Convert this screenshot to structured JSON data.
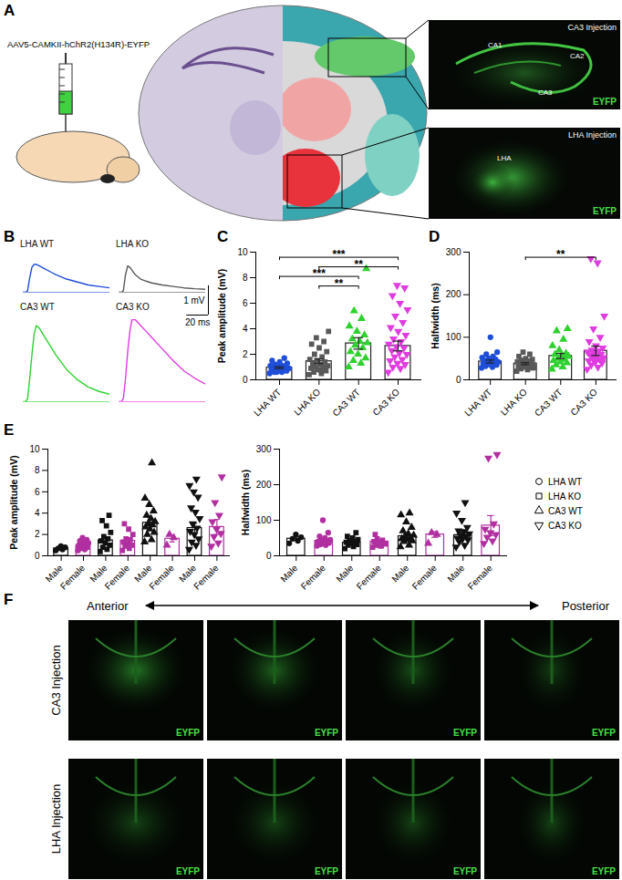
{
  "panels": {
    "A": {
      "label": "A",
      "vector": "AAV5-CAMKII-hChR2(H134R)-EYFP",
      "insets": [
        {
          "title": "CA3 Injection",
          "stain": "EYFP",
          "regions": [
            "CA1",
            "CA2",
            "CA3"
          ]
        },
        {
          "title": "LHA Injection",
          "stain": "EYFP",
          "regions": [
            "LHA"
          ]
        }
      ]
    },
    "F": {
      "label": "F",
      "axis": {
        "start": "Anterior",
        "end": "Posterior"
      },
      "rows": [
        {
          "title": "CA3 Injection",
          "images": [
            "EYFP",
            "EYFP",
            "EYFP",
            "EYFP"
          ]
        },
        {
          "title": "LHA Injection",
          "images": [
            "EYFP",
            "EYFP",
            "EYFP",
            "EYFP"
          ]
        }
      ]
    }
  },
  "chart_data": [
    {
      "panel": "B",
      "type": "line",
      "tick_labels": false,
      "x": [
        0,
        2,
        4,
        6,
        8,
        10,
        12,
        15,
        20,
        25,
        30,
        40,
        50,
        60,
        70,
        80
      ],
      "series": [
        {
          "name": "LHA WT",
          "color": "#1f4ed8",
          "values": [
            0,
            0,
            0.05,
            0.5,
            0.85,
            0.95,
            0.95,
            0.9,
            0.8,
            0.7,
            0.6,
            0.45,
            0.35,
            0.25,
            0.2,
            0.15
          ]
        },
        {
          "name": "LHA KO",
          "color": "#595959",
          "values": [
            0,
            0,
            0.05,
            0.6,
            0.9,
            0.85,
            0.75,
            0.6,
            0.45,
            0.38,
            0.32,
            0.25,
            0.2,
            0.15,
            0.12,
            0.1
          ]
        },
        {
          "name": "CA3 WT",
          "color": "#2fd12f",
          "values": [
            0,
            0,
            0.1,
            0.8,
            1.6,
            2.3,
            2.6,
            2.5,
            2.2,
            1.9,
            1.6,
            1.1,
            0.75,
            0.5,
            0.35,
            0.25
          ]
        },
        {
          "name": "CA3 KO",
          "color": "#e03ce0",
          "values": [
            0,
            0,
            0.1,
            0.8,
            1.7,
            2.4,
            2.8,
            2.8,
            2.6,
            2.4,
            2.2,
            1.8,
            1.4,
            1.05,
            0.8,
            0.6
          ]
        }
      ],
      "scale_bar": {
        "y": 1,
        "y_label": "1 mV",
        "x": 20,
        "x_label": "20 ms"
      }
    },
    {
      "panel": "C",
      "type": "bar",
      "y_label": "Peak amplitude (mV)",
      "ylim": [
        0,
        10
      ],
      "yticks": [
        0,
        2,
        4,
        6,
        8,
        10
      ],
      "series": [
        {
          "name": "LHA WT",
          "color": "#1f4ed8",
          "marker": "circle",
          "mean": 0.95,
          "sem": 0.07,
          "values": [
            0.5,
            0.6,
            0.6,
            0.7,
            0.7,
            0.8,
            0.8,
            0.8,
            0.9,
            0.9,
            1.0,
            1.0,
            1.0,
            1.1,
            1.1,
            1.2,
            1.3,
            1.4,
            1.5,
            1.7,
            0.6,
            0.9
          ]
        },
        {
          "name": "LHA KO",
          "color": "#595959",
          "marker": "square",
          "mean": 1.45,
          "sem": 0.18,
          "values": [
            0.4,
            0.5,
            0.6,
            0.7,
            0.8,
            0.9,
            1.0,
            1.0,
            1.1,
            1.2,
            1.3,
            1.4,
            1.5,
            1.6,
            1.8,
            2.0,
            2.2,
            2.5,
            2.8,
            3.0,
            3.3,
            3.8,
            0.7,
            1.2
          ]
        },
        {
          "name": "CA3 WT",
          "color": "#2fd12f",
          "marker": "triangle",
          "mean": 2.85,
          "sem": 0.45,
          "values": [
            1.0,
            1.3,
            1.5,
            1.7,
            2.0,
            2.2,
            2.5,
            2.7,
            2.9,
            3.0,
            3.2,
            3.5,
            3.8,
            4.2,
            4.8,
            5.4,
            8.7
          ]
        },
        {
          "name": "CA3 KO",
          "color": "#e03ce0",
          "marker": "triangle-down",
          "mean": 2.65,
          "sem": 0.38,
          "values": [
            0.6,
            0.9,
            1.0,
            1.2,
            1.3,
            1.5,
            1.6,
            1.8,
            2.0,
            2.1,
            2.3,
            2.5,
            2.6,
            2.8,
            3.0,
            3.2,
            3.5,
            3.8,
            4.1,
            4.5,
            5.0,
            5.5,
            6.0,
            6.6,
            7.2,
            7.4
          ]
        }
      ],
      "comparisons": [
        {
          "from": "LHA WT",
          "to": "CA3 KO",
          "label": "***"
        },
        {
          "from": "LHA KO",
          "to": "CA3 KO",
          "label": "**"
        },
        {
          "from": "LHA WT",
          "to": "CA3 WT",
          "label": "***"
        },
        {
          "from": "LHA KO",
          "to": "CA3 WT",
          "label": "**"
        }
      ]
    },
    {
      "panel": "D",
      "type": "bar",
      "y_label": "Halfwidth (ms)",
      "ylim": [
        0,
        300
      ],
      "yticks": [
        0,
        100,
        200,
        300
      ],
      "series": [
        {
          "name": "LHA WT",
          "color": "#1f4ed8",
          "marker": "circle",
          "mean": 43,
          "sem": 3.5,
          "values": [
            28,
            30,
            32,
            35,
            36,
            38,
            40,
            40,
            42,
            44,
            45,
            48,
            50,
            52,
            55,
            60,
            65,
            100,
            38,
            42
          ]
        },
        {
          "name": "LHA KO",
          "color": "#595959",
          "marker": "square",
          "mean": 38,
          "sem": 2.5,
          "values": [
            20,
            24,
            26,
            28,
            30,
            30,
            32,
            34,
            35,
            36,
            38,
            40,
            40,
            42,
            44,
            46,
            48,
            50,
            55,
            60,
            65,
            28,
            33
          ]
        },
        {
          "name": "CA3 WT",
          "color": "#2fd12f",
          "marker": "triangle",
          "mean": 56,
          "sem": 6,
          "values": [
            25,
            30,
            35,
            40,
            42,
            45,
            48,
            50,
            55,
            58,
            60,
            62,
            70,
            80,
            95,
            115,
            120
          ]
        },
        {
          "name": "CA3 KO",
          "color": "#e03ce0",
          "marker": "triangle-down",
          "mean": 68,
          "sem": 11,
          "values": [
            25,
            30,
            35,
            40,
            42,
            45,
            48,
            50,
            52,
            55,
            58,
            60,
            62,
            65,
            68,
            70,
            75,
            80,
            90,
            100,
            120,
            150,
            275,
            285,
            45,
            55
          ]
        }
      ],
      "comparisons": [
        {
          "from": "LHA KO",
          "to": "CA3 KO",
          "label": "**"
        }
      ]
    },
    {
      "panel": "E",
      "type": "bar",
      "y_label": "Peak amplitude (mV)",
      "ylim": [
        0,
        10
      ],
      "yticks": [
        0,
        2,
        4,
        6,
        8,
        10
      ],
      "series": [
        {
          "name": "LHA WT",
          "marker": "circle",
          "groups": [
            {
              "name": "Male",
              "color": "#111111",
              "mean": 0.7,
              "sem": 0.08,
              "values": [
                0.5,
                0.6,
                0.7,
                0.8,
                0.9
              ]
            },
            {
              "name": "Female",
              "color": "#b12fa0",
              "mean": 1.0,
              "sem": 0.08,
              "values": [
                0.5,
                0.6,
                0.7,
                0.8,
                0.9,
                1.0,
                1.0,
                1.1,
                1.2,
                1.3,
                1.4,
                1.5,
                1.7,
                0.8
              ]
            }
          ]
        },
        {
          "name": "LHA KO",
          "marker": "square",
          "groups": [
            {
              "name": "Male",
              "color": "#111111",
              "mean": 1.45,
              "sem": 0.3,
              "values": [
                0.4,
                0.6,
                0.8,
                1.0,
                1.2,
                1.4,
                1.6,
                1.8,
                2.2,
                2.8,
                3.3,
                3.8
              ]
            },
            {
              "name": "Female",
              "color": "#b12fa0",
              "mean": 1.4,
              "sem": 0.25,
              "values": [
                0.5,
                0.7,
                0.9,
                1.0,
                1.1,
                1.3,
                1.5,
                1.6,
                2.0,
                2.5,
                3.0
              ]
            }
          ]
        },
        {
          "name": "CA3 WT",
          "marker": "triangle",
          "groups": [
            {
              "name": "Male",
              "color": "#111111",
              "mean": 3.1,
              "sem": 0.5,
              "values": [
                1.3,
                1.5,
                2.0,
                2.2,
                2.5,
                2.7,
                2.9,
                3.0,
                3.2,
                3.5,
                3.8,
                4.2,
                4.8,
                5.4,
                8.7
              ]
            },
            {
              "name": "Female",
              "color": "#b12fa0",
              "mean": 1.6,
              "sem": 0.3,
              "values": [
                1.0,
                1.7,
                2.0
              ]
            }
          ]
        },
        {
          "name": "CA3 KO",
          "marker": "triangle-down",
          "groups": [
            {
              "name": "Male",
              "color": "#111111",
              "mean": 2.6,
              "sem": 0.45,
              "values": [
                0.6,
                1.0,
                1.3,
                1.6,
                2.0,
                2.3,
                2.6,
                3.0,
                3.5,
                4.1,
                4.5,
                5.5,
                6.0,
                6.6,
                7.2
              ]
            },
            {
              "name": "Female",
              "color": "#b12fa0",
              "mean": 2.7,
              "sem": 0.7,
              "values": [
                0.9,
                1.2,
                1.8,
                2.1,
                2.5,
                3.2,
                3.8,
                5.0,
                7.4
              ]
            }
          ]
        }
      ]
    },
    {
      "type": "bar",
      "y_label": "Halfwidth (ms)",
      "ylim": [
        0,
        300
      ],
      "yticks": [
        0,
        100,
        200,
        300
      ],
      "legend": "right",
      "series": [
        {
          "name": "LHA WT",
          "marker": "circle",
          "groups": [
            {
              "name": "Male",
              "color": "#111111",
              "mean": 48,
              "sem": 5,
              "values": [
                35,
                42,
                48,
                52,
                60
              ]
            },
            {
              "name": "Female",
              "color": "#b12fa0",
              "mean": 42,
              "sem": 5,
              "values": [
                28,
                30,
                32,
                36,
                38,
                40,
                42,
                44,
                45,
                50,
                55,
                65,
                100,
                38
              ]
            }
          ]
        },
        {
          "name": "LHA KO",
          "marker": "square",
          "groups": [
            {
              "name": "Male",
              "color": "#111111",
              "mean": 37,
              "sem": 4,
              "values": [
                20,
                26,
                30,
                32,
                35,
                38,
                40,
                42,
                46,
                50,
                55,
                65
              ]
            },
            {
              "name": "Female",
              "color": "#b12fa0",
              "mean": 40,
              "sem": 4,
              "values": [
                24,
                28,
                30,
                34,
                36,
                40,
                44,
                48,
                33,
                28,
                60
              ]
            }
          ]
        },
        {
          "name": "CA3 WT",
          "marker": "triangle",
          "groups": [
            {
              "name": "Male",
              "color": "#111111",
              "mean": 55,
              "sem": 7,
              "values": [
                25,
                30,
                40,
                42,
                45,
                48,
                50,
                55,
                58,
                62,
                70,
                80,
                95,
                115,
                120
              ]
            },
            {
              "name": "Female",
              "color": "#b12fa0",
              "mean": 60,
              "sem": 8,
              "values": [
                35,
                60,
                65
              ]
            }
          ]
        },
        {
          "name": "CA3 KO",
          "marker": "triangle-down",
          "groups": [
            {
              "name": "Male",
              "color": "#111111",
              "mean": 58,
              "sem": 8,
              "values": [
                25,
                30,
                40,
                45,
                48,
                50,
                55,
                58,
                62,
                68,
                70,
                80,
                100,
                120,
                150
              ]
            },
            {
              "name": "Female",
              "color": "#b12fa0",
              "mean": 85,
              "sem": 28,
              "values": [
                35,
                42,
                52,
                60,
                65,
                75,
                90,
                275,
                285
              ]
            }
          ]
        }
      ]
    }
  ]
}
